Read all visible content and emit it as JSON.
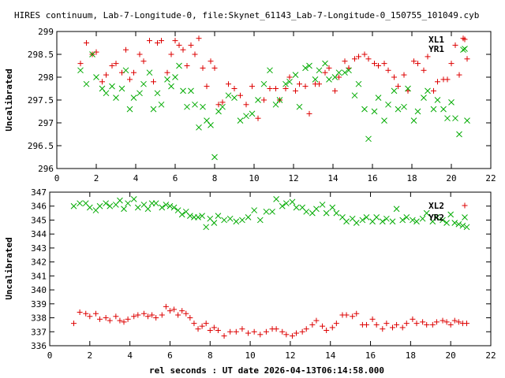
{
  "chart_data": [
    {
      "type": "scatter",
      "title": "HIRES continuum, Lab-7-Longitude-0, file:Skynet_61143_Lab-7-Longitude-0_150755_101049.cyb",
      "xlabel": "",
      "ylabel": "Uncalibrated",
      "xlim": [
        0,
        22
      ],
      "ylim": [
        296,
        299
      ],
      "x_ticks": [
        "0",
        "2",
        "4",
        "6",
        "8",
        "10",
        "12",
        "14",
        "16",
        "18",
        "20",
        "22"
      ],
      "y_ticks": [
        "296",
        "296.5",
        "297",
        "297.5",
        "298",
        "298.5",
        "299"
      ],
      "legend_position": "top-right",
      "series": [
        {
          "name": "XL1",
          "marker": "plus",
          "color": "#dd0000",
          "x": [
            1.2,
            1.5,
            1.8,
            2.0,
            2.3,
            2.5,
            2.8,
            3.0,
            3.3,
            3.5,
            3.7,
            3.9,
            4.2,
            4.4,
            4.7,
            4.9,
            5.1,
            5.3,
            5.6,
            5.8,
            6.0,
            6.2,
            6.4,
            6.6,
            6.8,
            7.0,
            7.2,
            7.4,
            7.6,
            7.8,
            8.0,
            8.2,
            8.4,
            8.7,
            9.0,
            9.3,
            9.6,
            9.9,
            10.2,
            10.5,
            10.8,
            11.1,
            11.3,
            11.6,
            11.8,
            12.1,
            12.3,
            12.6,
            12.8,
            13.1,
            13.3,
            13.6,
            13.8,
            14.1,
            14.3,
            14.6,
            14.8,
            15.1,
            15.3,
            15.6,
            15.8,
            16.1,
            16.3,
            16.6,
            16.8,
            17.1,
            17.3,
            17.6,
            17.8,
            18.1,
            18.3,
            18.6,
            18.8,
            19.1,
            19.3,
            19.6,
            19.8,
            20.0,
            20.2,
            20.4,
            20.6,
            20.8
          ],
          "y": [
            298.3,
            298.75,
            298.5,
            298.55,
            297.9,
            298.05,
            298.25,
            298.3,
            298.1,
            298.6,
            297.95,
            298.1,
            298.5,
            298.35,
            298.8,
            297.9,
            298.75,
            298.8,
            298.1,
            298.5,
            298.8,
            298.7,
            298.6,
            298.25,
            298.7,
            298.5,
            298.85,
            298.2,
            297.8,
            298.35,
            298.2,
            297.4,
            297.45,
            297.85,
            297.75,
            297.6,
            297.4,
            297.8,
            297.1,
            297.5,
            297.75,
            297.75,
            297.5,
            297.75,
            298.0,
            297.7,
            297.85,
            297.8,
            297.2,
            297.85,
            297.85,
            298.1,
            298.2,
            297.7,
            298.0,
            298.35,
            298.2,
            298.4,
            298.45,
            298.5,
            298.4,
            298.3,
            298.25,
            298.3,
            298.15,
            298.0,
            297.8,
            298.05,
            297.7,
            298.35,
            298.3,
            298.15,
            298.45,
            297.7,
            297.9,
            297.95,
            297.95,
            298.3,
            298.7,
            298.05,
            298.85,
            298.4
          ]
        },
        {
          "name": "YR1",
          "marker": "cross",
          "color": "#00aa00",
          "x": [
            1.2,
            1.5,
            1.8,
            2.0,
            2.3,
            2.5,
            2.8,
            3.0,
            3.3,
            3.5,
            3.7,
            3.9,
            4.2,
            4.4,
            4.7,
            4.9,
            5.1,
            5.3,
            5.6,
            5.8,
            6.0,
            6.2,
            6.4,
            6.6,
            6.8,
            7.0,
            7.2,
            7.4,
            7.6,
            7.8,
            8.0,
            8.2,
            8.4,
            8.7,
            9.0,
            9.3,
            9.6,
            9.9,
            10.2,
            10.5,
            10.8,
            11.1,
            11.3,
            11.6,
            11.8,
            12.1,
            12.3,
            12.6,
            12.8,
            13.1,
            13.3,
            13.6,
            13.8,
            14.1,
            14.3,
            14.6,
            14.8,
            15.1,
            15.3,
            15.6,
            15.8,
            16.1,
            16.3,
            16.6,
            16.8,
            17.1,
            17.3,
            17.6,
            17.8,
            18.1,
            18.3,
            18.6,
            18.8,
            19.1,
            19.3,
            19.6,
            19.8,
            20.0,
            20.2,
            20.4,
            20.6,
            20.8
          ],
          "y": [
            298.15,
            297.85,
            298.5,
            298.0,
            297.75,
            297.65,
            297.8,
            297.55,
            297.75,
            298.15,
            297.3,
            297.55,
            297.65,
            297.85,
            298.1,
            297.3,
            297.65,
            297.4,
            297.95,
            297.8,
            298.0,
            298.25,
            297.7,
            297.35,
            297.7,
            297.4,
            296.9,
            297.35,
            297.05,
            296.95,
            296.25,
            297.25,
            297.35,
            297.6,
            297.55,
            297.05,
            297.15,
            297.2,
            297.5,
            297.85,
            298.15,
            297.4,
            297.5,
            297.85,
            297.9,
            298.05,
            297.35,
            298.2,
            298.25,
            297.95,
            298.15,
            298.3,
            297.95,
            298.0,
            298.1,
            298.1,
            298.15,
            297.6,
            297.85,
            297.3,
            296.65,
            297.25,
            297.55,
            297.05,
            297.4,
            297.7,
            297.3,
            297.35,
            297.75,
            297.05,
            297.25,
            297.55,
            297.7,
            297.3,
            297.5,
            297.3,
            297.1,
            297.45,
            297.1,
            296.75,
            298.6,
            297.05
          ]
        }
      ]
    },
    {
      "type": "scatter",
      "title": "",
      "xlabel": "rel seconds : UT date 2026-04-13T06:14:58.000",
      "ylabel": "Uncalibrated",
      "xlim": [
        0,
        22
      ],
      "ylim": [
        336,
        347
      ],
      "x_ticks": [
        "0",
        "2",
        "4",
        "6",
        "8",
        "10",
        "12",
        "14",
        "16",
        "18",
        "20",
        "22"
      ],
      "y_ticks": [
        "336",
        "337",
        "338",
        "339",
        "340",
        "341",
        "342",
        "343",
        "344",
        "345",
        "346",
        "347"
      ],
      "legend_position": "top-right",
      "series": [
        {
          "name": "XL2",
          "marker": "plus",
          "color": "#dd0000",
          "x": [
            1.2,
            1.5,
            1.8,
            2.0,
            2.3,
            2.5,
            2.8,
            3.0,
            3.3,
            3.5,
            3.7,
            3.9,
            4.2,
            4.4,
            4.7,
            4.9,
            5.1,
            5.3,
            5.6,
            5.8,
            6.0,
            6.2,
            6.4,
            6.6,
            6.8,
            7.0,
            7.2,
            7.4,
            7.6,
            7.8,
            8.0,
            8.2,
            8.4,
            8.7,
            9.0,
            9.3,
            9.6,
            9.9,
            10.2,
            10.5,
            10.8,
            11.1,
            11.3,
            11.6,
            11.8,
            12.1,
            12.3,
            12.6,
            12.8,
            13.1,
            13.3,
            13.6,
            13.8,
            14.1,
            14.3,
            14.6,
            14.8,
            15.1,
            15.3,
            15.6,
            15.8,
            16.1,
            16.3,
            16.6,
            16.8,
            17.1,
            17.3,
            17.6,
            17.8,
            18.1,
            18.3,
            18.6,
            18.8,
            19.1,
            19.3,
            19.6,
            19.8,
            20.0,
            20.2,
            20.4,
            20.6,
            20.8
          ],
          "y": [
            337.6,
            338.4,
            338.3,
            338.1,
            338.3,
            337.9,
            338.0,
            337.8,
            338.1,
            337.8,
            337.7,
            337.9,
            338.1,
            338.2,
            338.3,
            338.1,
            338.2,
            338.0,
            338.2,
            338.8,
            338.5,
            338.6,
            338.2,
            338.5,
            338.3,
            338.0,
            337.6,
            337.2,
            337.4,
            337.6,
            337.1,
            337.3,
            337.1,
            336.7,
            337.0,
            337.0,
            337.2,
            336.9,
            337.0,
            336.8,
            337.0,
            337.2,
            337.2,
            337.0,
            336.8,
            336.7,
            336.9,
            337.0,
            337.2,
            337.5,
            337.8,
            337.4,
            337.1,
            337.3,
            337.6,
            338.2,
            338.2,
            338.1,
            338.3,
            337.5,
            337.5,
            337.9,
            337.5,
            337.2,
            337.6,
            337.3,
            337.5,
            337.3,
            337.6,
            337.9,
            337.6,
            337.7,
            337.5,
            337.5,
            337.7,
            337.8,
            337.7,
            337.5,
            337.8,
            337.7,
            337.6,
            337.6
          ]
        },
        {
          "name": "YR2",
          "marker": "cross",
          "color": "#00aa00",
          "x": [
            1.2,
            1.5,
            1.8,
            2.0,
            2.3,
            2.5,
            2.8,
            3.0,
            3.3,
            3.5,
            3.7,
            3.9,
            4.2,
            4.4,
            4.7,
            4.9,
            5.1,
            5.3,
            5.6,
            5.8,
            6.0,
            6.2,
            6.4,
            6.6,
            6.8,
            7.0,
            7.2,
            7.4,
            7.6,
            7.8,
            8.0,
            8.2,
            8.4,
            8.7,
            9.0,
            9.3,
            9.6,
            9.9,
            10.2,
            10.5,
            10.8,
            11.1,
            11.3,
            11.6,
            11.8,
            12.1,
            12.3,
            12.6,
            12.8,
            13.1,
            13.3,
            13.6,
            13.8,
            14.1,
            14.3,
            14.6,
            14.8,
            15.1,
            15.3,
            15.6,
            15.8,
            16.1,
            16.3,
            16.6,
            16.8,
            17.1,
            17.3,
            17.6,
            17.8,
            18.1,
            18.3,
            18.6,
            18.8,
            19.1,
            19.3,
            19.6,
            19.8,
            20.0,
            20.2,
            20.4,
            20.6,
            20.8
          ],
          "y": [
            346.0,
            346.2,
            346.2,
            345.9,
            345.7,
            346.0,
            346.2,
            346.0,
            346.1,
            346.4,
            345.8,
            346.2,
            346.5,
            345.9,
            346.1,
            345.8,
            346.2,
            346.2,
            345.9,
            346.1,
            346.0,
            345.9,
            345.7,
            345.4,
            345.6,
            345.3,
            345.2,
            345.2,
            345.3,
            344.5,
            345.1,
            344.8,
            345.3,
            345.0,
            345.1,
            344.9,
            345.0,
            345.2,
            345.7,
            345.0,
            345.6,
            345.6,
            346.5,
            346.0,
            346.2,
            346.3,
            345.9,
            345.9,
            345.6,
            345.5,
            345.8,
            346.1,
            345.5,
            345.9,
            345.5,
            345.2,
            344.9,
            345.1,
            344.8,
            345.0,
            345.2,
            344.9,
            345.2,
            344.9,
            345.1,
            344.9,
            345.8,
            345.0,
            345.2,
            345.0,
            344.9,
            345.1,
            345.5,
            344.9,
            345.2,
            345.0,
            344.8,
            345.4,
            344.8,
            344.7,
            344.6,
            344.5
          ]
        }
      ]
    }
  ]
}
